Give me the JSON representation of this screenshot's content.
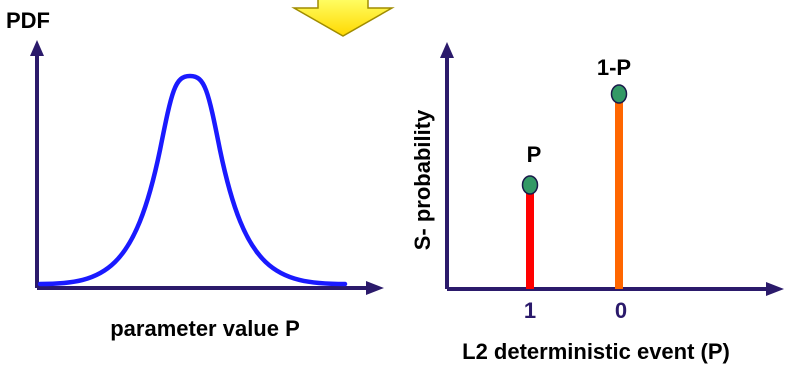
{
  "left_panel": {
    "y_label": "PDF",
    "x_label": "parameter value P"
  },
  "right_panel": {
    "y_label": "S- probability",
    "x_label": "L2 deterministic event (P)",
    "ticks": [
      "1",
      "0"
    ],
    "bars": [
      {
        "tick": "1",
        "label": "P",
        "color": "#ff0000"
      },
      {
        "tick": "0",
        "label": "1-P",
        "color": "#ff6600"
      }
    ]
  },
  "colors": {
    "axis": "#2b1a6b",
    "curve": "#1a1aff",
    "marker": "#339966",
    "tick_text": "#2b1a6b",
    "down_arrow_fill": "#ffff33",
    "down_arrow_stroke": "#a08c00"
  }
}
